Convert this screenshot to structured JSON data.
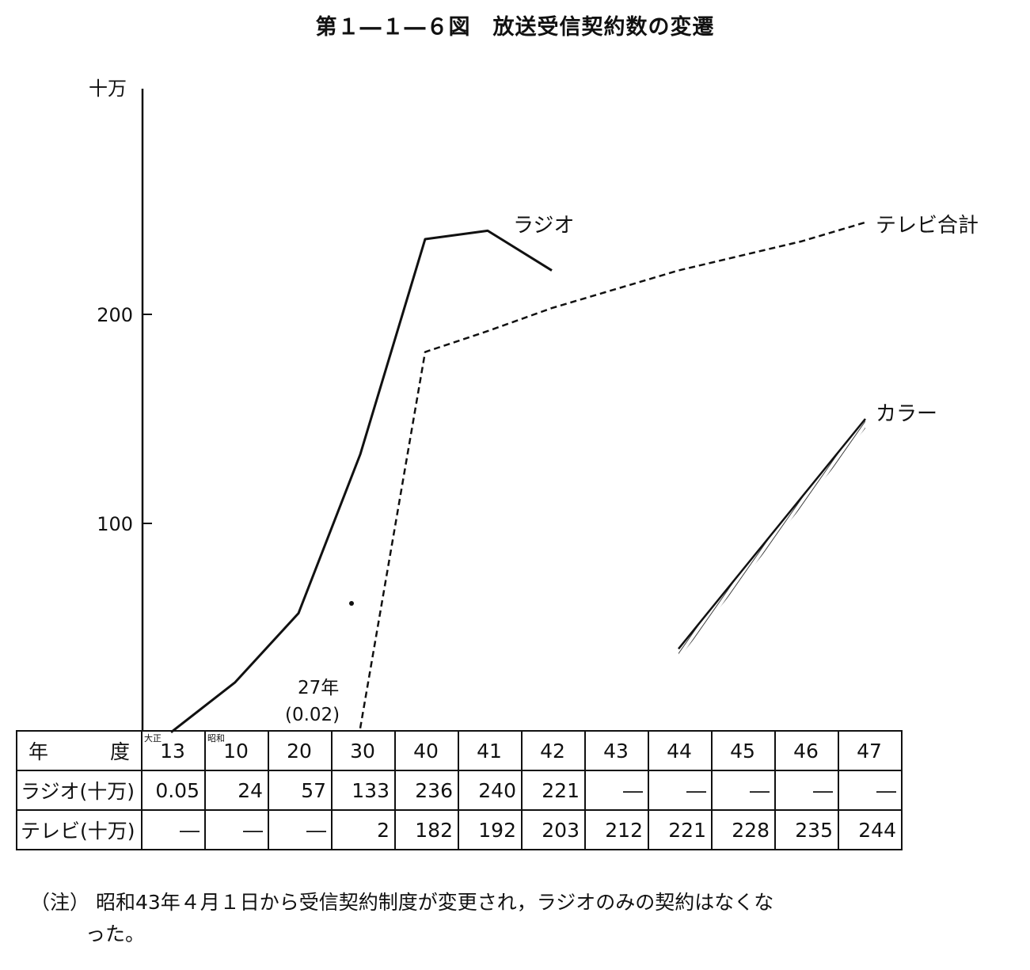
{
  "title": "第１―１―６図　放送受信契約数の変遷",
  "chart_data": {
    "type": "line",
    "ylabel": "十万",
    "yticks": [
      100,
      200
    ],
    "ylim": [
      0,
      300
    ],
    "x_categories": [
      "13",
      "10",
      "20",
      "30",
      "40",
      "41",
      "42",
      "43",
      "44",
      "45",
      "46",
      "47"
    ],
    "series": [
      {
        "name": "ラジオ",
        "style": "solid",
        "values": [
          0.05,
          24,
          57,
          133,
          236,
          240,
          221,
          null,
          null,
          null,
          null,
          null
        ]
      },
      {
        "name": "テレビ合計",
        "style": "dashed",
        "values": [
          null,
          null,
          null,
          2,
          182,
          192,
          203,
          212,
          221,
          228,
          235,
          244
        ]
      },
      {
        "name": "カラー",
        "style": "hatched",
        "values": [
          null,
          null,
          null,
          null,
          null,
          null,
          null,
          null,
          40,
          null,
          null,
          150
        ]
      }
    ],
    "annotation": {
      "label": "27年",
      "value": "(0.02)"
    }
  },
  "table": {
    "year_header_left": "年",
    "year_header_right": "度",
    "era_taisho": "大正",
    "era_showa": "昭和",
    "years": [
      "13",
      "10",
      "20",
      "30",
      "40",
      "41",
      "42",
      "43",
      "44",
      "45",
      "46",
      "47"
    ],
    "radio_header": "ラジオ(十万)",
    "tv_header": "テレビ(十万)",
    "radio": [
      "0.05",
      "24",
      "57",
      "133",
      "236",
      "240",
      "221",
      "―",
      "―",
      "―",
      "―",
      "―"
    ],
    "tv": [
      "―",
      "―",
      "―",
      "2",
      "182",
      "192",
      "203",
      "212",
      "221",
      "228",
      "235",
      "244"
    ]
  },
  "note_label": "（注）",
  "note_line1": "昭和43年４月１日から受信契約制度が変更され，ラジオのみの契約はなくな",
  "note_line2": "った。"
}
